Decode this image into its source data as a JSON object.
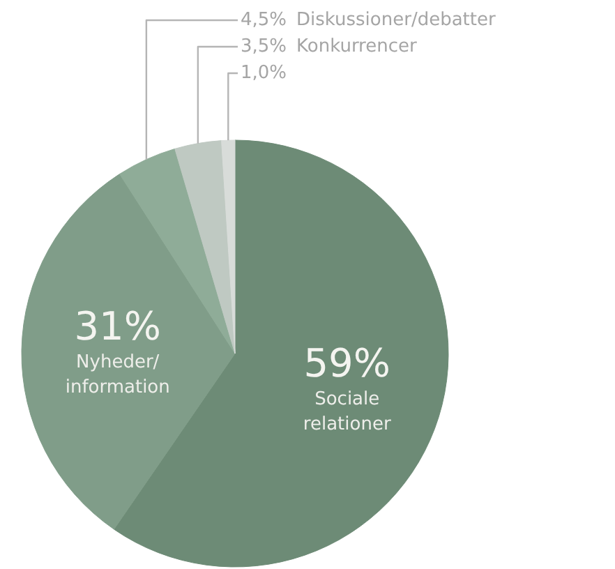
{
  "chart_data": {
    "type": "pie",
    "categories": [
      "Sociale relationer",
      "Nyheder/ information",
      "Diskussioner/debatter",
      "Konkurrencer",
      null
    ],
    "values": [
      59,
      31,
      4.5,
      3.5,
      1.0
    ],
    "value_labels": [
      "59%",
      "31%",
      "4,5%",
      "3,5%",
      "1,0%"
    ],
    "colors": [
      "#6d8b76",
      "#809d89",
      "#8fac98",
      "#bfc9c2",
      "#d8dcd9"
    ]
  }
}
